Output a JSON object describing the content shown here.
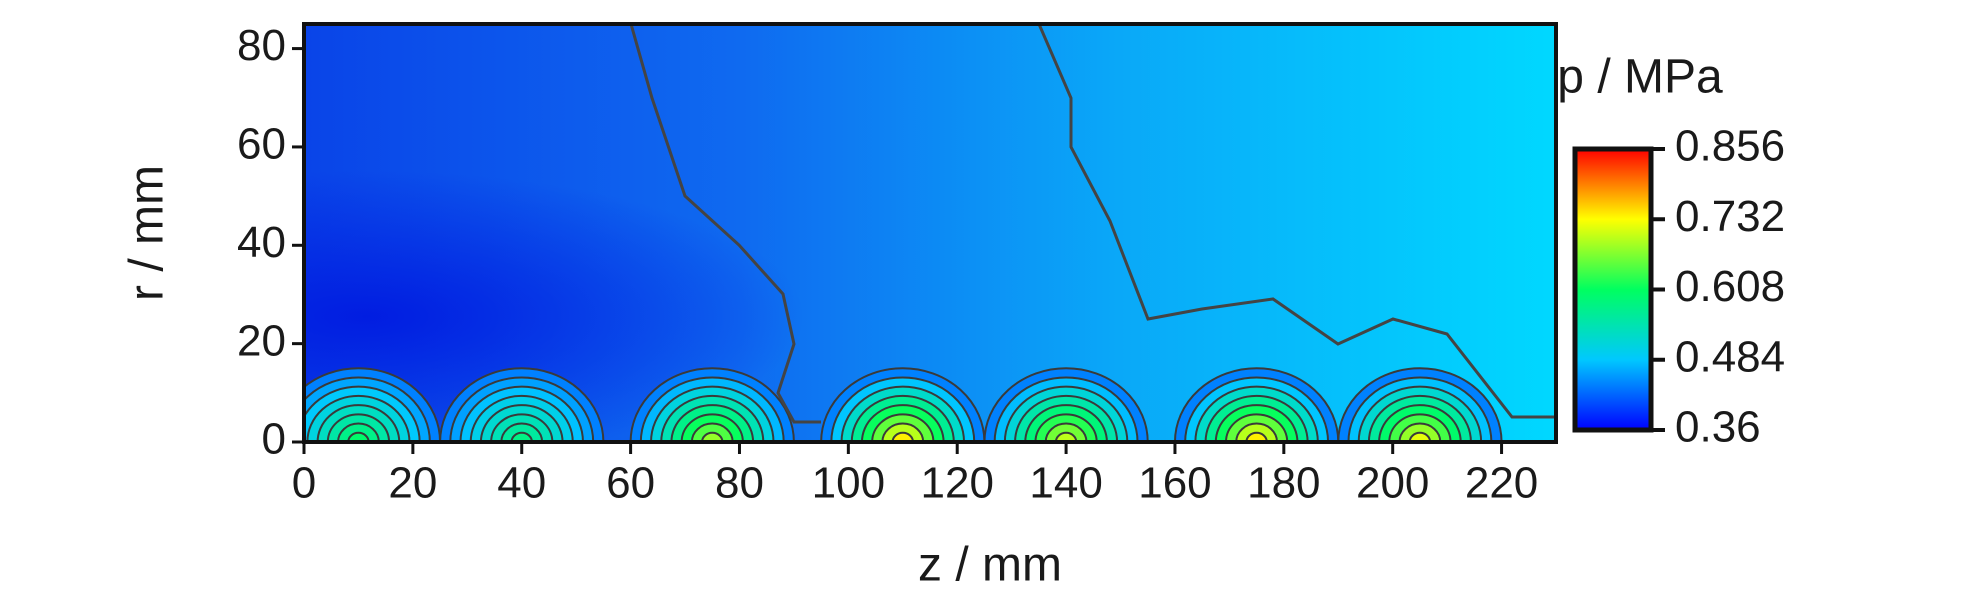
{
  "chart_data": {
    "type": "contour",
    "xlabel": "z / mm",
    "ylabel": "r / mm",
    "colorbar_label": "p / MPa",
    "xlim": [
      0,
      230
    ],
    "xticks": [
      0,
      20,
      40,
      60,
      80,
      100,
      120,
      140,
      160,
      180,
      200,
      220
    ],
    "ylim": [
      0,
      85
    ],
    "yticks": [
      0,
      20,
      40,
      60,
      80
    ],
    "clim": [
      0.36,
      0.856
    ],
    "cticks": [
      0.36,
      0.484,
      0.608,
      0.732,
      0.856
    ],
    "colormap": [
      "#0000ff",
      "#00c8ff",
      "#00ff60",
      "#ffff00",
      "#ff0000"
    ],
    "peaks": {
      "z": [
        10,
        40,
        75,
        110,
        140,
        175,
        205
      ],
      "values": [
        0.6,
        0.58,
        0.68,
        0.74,
        0.7,
        0.74,
        0.72
      ]
    }
  }
}
